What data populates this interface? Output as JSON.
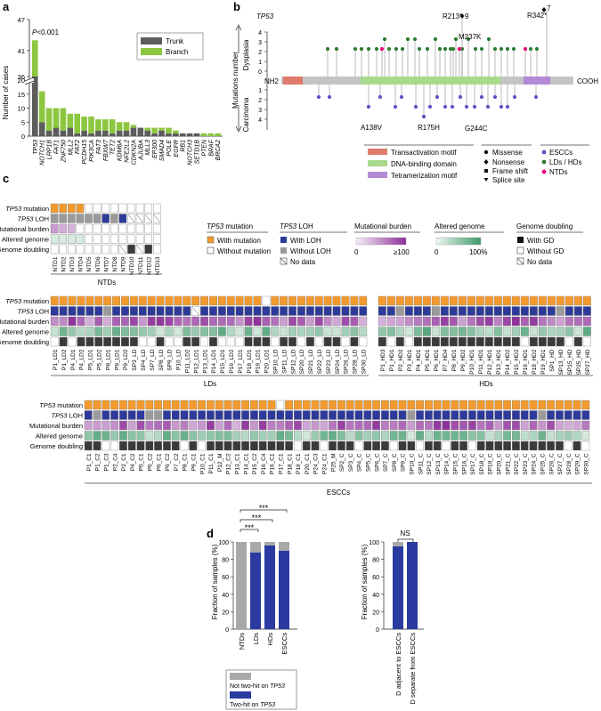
{
  "panels": {
    "a": "a",
    "b": "b",
    "c": "c",
    "d": "d"
  },
  "colors": {
    "trunk": "#5c5c5c",
    "branch": "#8dc63f",
    "mut": "#f39a2e",
    "loh": "#2e3a9a",
    "noloh": "#9a9a9a",
    "dbd": "#a8d98c",
    "tad": "#e07a6a",
    "tet": "#b48ad4",
    "esc": "#6a4cc2",
    "ld": "#2e7d32",
    "ntd": "#e6007e",
    "burden": "#8e2f9a",
    "altered": "#3c9a6a",
    "gd": "#3a3a3a",
    "twohit": "#2b3aa0",
    "nottwo": "#a8a8a8"
  },
  "panel_a": {
    "ylabel": "Number of cases",
    "pvalue": "P<0.001",
    "legend": [
      "Trunk",
      "Branch"
    ],
    "ticks_low": [
      "0",
      "5",
      "10",
      "15",
      "20"
    ],
    "ticks_high": [
      "36",
      "41",
      "47"
    ],
    "chart_data": {
      "type": "bar",
      "categories": [
        "TP53",
        "NOTCH1",
        "LRP1B",
        "FAT1",
        "ZNF750",
        "MLL2",
        "FAT2",
        "PCDH15",
        "PIK3CA",
        "FAT3",
        "FBXW7",
        "TET2",
        "KDM6A",
        "NFE2L2",
        "CDKN2A",
        "AJUBA",
        "MLL3",
        "EP300",
        "SMAD4",
        "POLE",
        "EGFR",
        "RB1",
        "NOTCH3",
        "SETD1B",
        "PTEN",
        "BRAF",
        "BRCA2"
      ],
      "series": [
        {
          "name": "Trunk",
          "values": [
            36,
            5,
            2,
            3,
            2,
            3,
            1,
            2,
            1,
            2,
            2,
            1,
            2,
            2,
            3,
            3,
            2,
            1,
            2,
            1,
            1,
            1,
            1,
            1,
            0,
            0,
            0
          ]
        },
        {
          "name": "Branch",
          "values": [
            7,
            11,
            8,
            7,
            8,
            5,
            7,
            5,
            6,
            4,
            4,
            5,
            3,
            3,
            1,
            0,
            1,
            2,
            1,
            2,
            1,
            0,
            0,
            0,
            1,
            1,
            1
          ]
        }
      ],
      "ylim": [
        0,
        47
      ]
    }
  },
  "panel_b": {
    "gene": "TP53",
    "left_label": "NH2",
    "right_label": "COOH",
    "up_label": "Dysplasia",
    "down_label": "Carcinoma",
    "side_label": "Mutations number",
    "ticks": [
      "4",
      "3",
      "2",
      "1",
      "0",
      "1",
      "2",
      "3",
      "4"
    ],
    "top_annotations": [
      "R213*",
      "9",
      "R342*",
      "7",
      "M237K"
    ],
    "bottom_annotations": [
      "A138V",
      "R175H",
      "G244C"
    ],
    "legend_domains": [
      "Transactivation motif",
      "DNA-binding domain",
      "Tetramerization motif"
    ],
    "legend_types": [
      "Missense",
      "Nonsense",
      "Frame shift",
      "Splice site"
    ],
    "legend_groups": [
      "ESCCs",
      "LDs / HDs",
      "NTDs"
    ]
  },
  "panel_c": {
    "rows": [
      "TP53 mutation",
      "TP53 LOH",
      "Mutational burden",
      "Altered genome",
      "Genome doubling"
    ],
    "row_gene": "TP53",
    "row_mut_rest": " mutation",
    "row_loh_rest": " LOH",
    "ntd_labels": [
      "NTD1",
      "NTD2",
      "NTD3",
      "NTD4",
      "NTD5",
      "NTD6",
      "NTD7",
      "NTD8",
      "NTD9",
      "NTD10",
      "NTD11",
      "NTD12",
      "NTD13"
    ],
    "ntd_group": "NTDs",
    "ld_group": "LDs",
    "hd_group": "HDs",
    "escc_group": "ESCCs",
    "ld_labels": [
      "P1_LD1",
      "P1_LD2",
      "P4_LD1",
      "P4_LD2",
      "P5_LD1",
      "P5_LD2",
      "P8_LD1",
      "P9_LD1",
      "P9_LD2",
      "SP3_LD",
      "SP4_LD",
      "SP7_LD",
      "SP8_LD",
      "SP9_LD",
      "P10_LD",
      "P11_LD2",
      "P12_LD1",
      "P13_LD1",
      "P14_LD1",
      "P15_LD1",
      "P16_LD2",
      "P17_LD1",
      "P18_LD1",
      "P19_LD1",
      "P20_LD1",
      "SP10_LD",
      "SP11_LD",
      "SP12_LD",
      "SP20_LD",
      "SP21_LD",
      "SP22_LD",
      "SP23_LD",
      "SP24_LD",
      "SP26_LD",
      "SP28_LD",
      "SP30_LD"
    ],
    "hd_labels": [
      "P1_HD3",
      "P1_HD1",
      "P2_HD2",
      "P3_HD1",
      "P4_HD1",
      "P5_HD1",
      "P6_HD1",
      "P7_HD4",
      "P8_HD1",
      "P9_HD2",
      "P10_HD1",
      "P11_HD1",
      "P12_HD1",
      "P13_HD1",
      "P14_HD2",
      "P15_HD2",
      "P16_HD1",
      "P18_HD2",
      "P19_HD1",
      "SP1_HD",
      "SP13_HD",
      "SP15_HD",
      "SP25_HD",
      "SP27_HD"
    ],
    "escc_labels": [
      "P1_C1",
      "P1_C2",
      "P1_C3",
      "P2_C4",
      "P3_C1",
      "P4_C2",
      "P5_C1",
      "P5_C2",
      "P6_C1",
      "P6_C2",
      "P7_C2",
      "P8_C1",
      "P9_C1",
      "P10_C1",
      "P11_C1",
      "P12_M",
      "P12_C2",
      "P13_C1",
      "P14_C1",
      "P15_C2",
      "P16_C4",
      "P16_C1",
      "P17_C1",
      "P18_C1",
      "P19_C1",
      "P20_C1",
      "P24_C3",
      "P24_C1",
      "P25_M",
      "SP2_C",
      "SP3_C",
      "SP4_C",
      "SP5_C",
      "SP6_C",
      "SP7_C",
      "SP8_C",
      "SP9_C",
      "SP10_C",
      "SP11_C",
      "SP12_C",
      "SP13_C",
      "SP14_C",
      "SP15_C",
      "SP16_C",
      "SP17_C",
      "SP18_C",
      "SP19_C",
      "SP20_C",
      "SP21_C",
      "SP22_C",
      "SP23_C",
      "SP24_C",
      "SP25_C",
      "SP26_C",
      "SP27_C",
      "SP28_C",
      "SP29_C",
      "SP30_C"
    ],
    "legend_mut_title_gene": "TP53",
    "legend_mut_title_rest": " mutation",
    "legend_mut": [
      "With mutation",
      "Without mutation"
    ],
    "legend_loh_title_gene": "TP53",
    "legend_loh_title_rest": " LOH",
    "legend_loh": [
      "With LOH",
      "Without LOH",
      "No data"
    ],
    "legend_burden_title": "Mutational burden",
    "legend_burden_ticks": [
      "0",
      "≥100"
    ],
    "legend_alt_title": "Altered genome",
    "legend_alt_ticks": [
      "0",
      "100%"
    ],
    "legend_gd_title": "Genome doubling",
    "legend_gd": [
      "With GD",
      "Without GD",
      "No data"
    ]
  },
  "panel_d": {
    "ylabel": "Fraction of samples (%)",
    "ticks": [
      "0",
      "20",
      "40",
      "60",
      "80",
      "100"
    ],
    "sig": [
      "***",
      "***",
      "***"
    ],
    "ns": "NS",
    "legend_not": "Not two-hit on ",
    "legend_two": "Two-hit on ",
    "legend_gene": "TP53",
    "chart_data": [
      {
        "type": "bar",
        "categories": [
          "NTDs",
          "LDs",
          "HDs",
          "ESCCs"
        ],
        "series": [
          {
            "name": "Two-hit on TP53",
            "values": [
              0,
              88,
              96,
              90
            ]
          },
          {
            "name": "Not two-hit on TP53",
            "values": [
              100,
              12,
              4,
              10
            ]
          }
        ],
        "ylim": [
          0,
          100
        ]
      },
      {
        "type": "bar",
        "categories": [
          "D adjacent to ESCCs",
          "D separate from ESCCs"
        ],
        "series": [
          {
            "name": "Two-hit on TP53",
            "values": [
              95,
              100
            ]
          },
          {
            "name": "Not two-hit on TP53",
            "values": [
              5,
              0
            ]
          }
        ],
        "ylim": [
          0,
          100
        ]
      }
    ]
  }
}
